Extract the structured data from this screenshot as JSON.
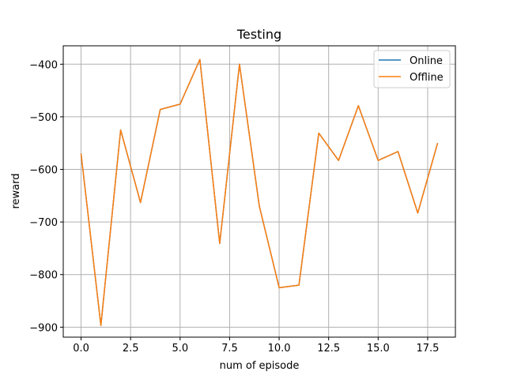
{
  "chart_data": {
    "type": "line",
    "title": "Testing",
    "xlabel": "num of episode",
    "ylabel": "reward",
    "xlim": [
      -0.9,
      18.9
    ],
    "ylim": [
      -919,
      -365
    ],
    "xticks": [
      0.0,
      2.5,
      5.0,
      7.5,
      10.0,
      12.5,
      15.0,
      17.5
    ],
    "xtick_labels": [
      "0.0",
      "2.5",
      "5.0",
      "7.5",
      "10.0",
      "12.5",
      "15.0",
      "17.5"
    ],
    "yticks": [
      -900,
      -800,
      -700,
      -600,
      -500,
      -400
    ],
    "ytick_labels": [
      "−900",
      "−800",
      "−700",
      "−600",
      "−500",
      "−400"
    ],
    "grid": true,
    "legend_position": "top-right",
    "x": [
      0,
      1,
      2,
      3,
      4,
      5,
      6,
      7,
      8,
      9,
      10,
      11,
      12,
      13,
      14,
      15,
      16,
      17,
      18
    ],
    "series": [
      {
        "name": "Online",
        "color": "#1f77b4",
        "values": [
          -570,
          -897,
          -525,
          -663,
          -486,
          -476,
          -391,
          -741,
          -400,
          -670,
          -825,
          -820,
          -531,
          -583,
          -479,
          -583,
          -566,
          -683,
          -550
        ]
      },
      {
        "name": "Offline",
        "color": "#ff7f0e",
        "values": [
          -570,
          -897,
          -525,
          -663,
          -486,
          -476,
          -391,
          -741,
          -400,
          -670,
          -825,
          -820,
          -531,
          -583,
          -479,
          -583,
          -566,
          -683,
          -550
        ]
      }
    ]
  }
}
